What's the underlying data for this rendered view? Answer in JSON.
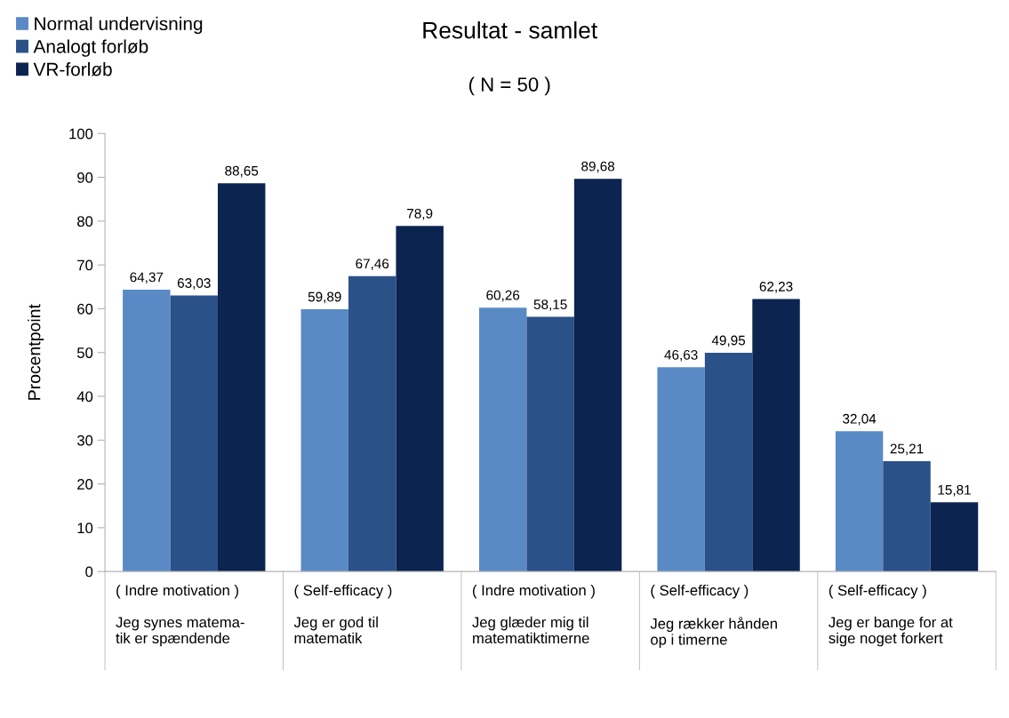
{
  "chart_data": {
    "type": "bar",
    "title": "Resultat - samlet",
    "subtitle": "( N = 50 )",
    "ylabel": "Procentpoint",
    "categories": [
      "( Indre motivation )\n\nJeg synes matema-\ntik er spændende",
      "( Self-efficacy )\n\nJeg er god til\nmatematik",
      "( Indre motivation )\n\nJeg glæder mig til\nmatematiktimerne",
      "( Self-efficacy )\n\nJeg rækker hånden\nop i timerne",
      "( Self-efficacy )\n\nJeg er bange for at\nsige noget forkert"
    ],
    "series": [
      {
        "name": "Normal undervisning",
        "color": "#5a8ac6",
        "values": [
          64.37,
          59.89,
          60.26,
          46.63,
          32.04
        ],
        "value_labels": [
          "64,37",
          "59,89",
          "60,26",
          "46,63",
          "32,04"
        ]
      },
      {
        "name": "Analogt forløb",
        "color": "#2b5189",
        "values": [
          63.03,
          67.46,
          58.15,
          49.95,
          25.21
        ],
        "value_labels": [
          "63,03",
          "67,46",
          "58,15",
          "49,95",
          "25,21"
        ]
      },
      {
        "name": "VR-forløb",
        "color": "#0b2450",
        "values": [
          88.65,
          78.9,
          89.68,
          62.23,
          15.81
        ],
        "value_labels": [
          "88,65",
          "78,9",
          "89,68",
          "62,23",
          "15,81"
        ]
      }
    ],
    "ylim": [
      0,
      100
    ],
    "yticks": [
      0,
      10,
      20,
      30,
      40,
      50,
      60,
      70,
      80,
      90,
      100
    ],
    "grid": false,
    "legend": "top left"
  }
}
